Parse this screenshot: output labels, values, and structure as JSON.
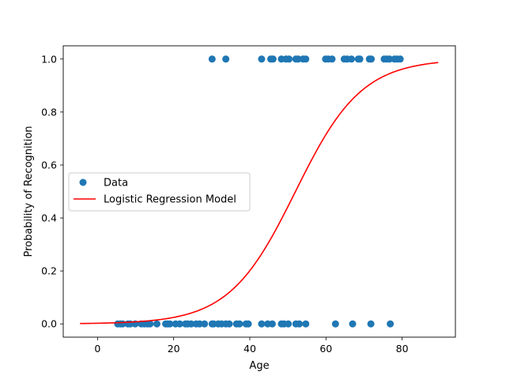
{
  "chart_data": {
    "type": "scatter",
    "title": "",
    "xlabel": "Age",
    "ylabel": "Probability of Recognition",
    "xlim": [
      -9,
      94
    ],
    "ylim": [
      -0.05,
      1.05
    ],
    "x_ticks": [
      0,
      20,
      40,
      60,
      80
    ],
    "y_ticks": [
      0.0,
      0.2,
      0.4,
      0.6,
      0.8,
      1.0
    ],
    "x_tick_labels": [
      "0",
      "20",
      "40",
      "60",
      "80"
    ],
    "y_tick_labels": [
      "0.0",
      "0.2",
      "0.4",
      "0.6",
      "0.8",
      "1.0"
    ],
    "grid": false,
    "legend_position": "center-left",
    "series": [
      {
        "name": "Data",
        "type": "scatter",
        "color": "#1f77b4",
        "points": [
          {
            "x": 5.3,
            "y": 0
          },
          {
            "x": 6.0,
            "y": 0
          },
          {
            "x": 6.6,
            "y": 0
          },
          {
            "x": 8.0,
            "y": 0
          },
          {
            "x": 8.6,
            "y": 0
          },
          {
            "x": 9.9,
            "y": 0
          },
          {
            "x": 11.5,
            "y": 0
          },
          {
            "x": 12.3,
            "y": 0
          },
          {
            "x": 13.1,
            "y": 0
          },
          {
            "x": 13.8,
            "y": 0
          },
          {
            "x": 15.6,
            "y": 0
          },
          {
            "x": 17.9,
            "y": 0
          },
          {
            "x": 18.4,
            "y": 0
          },
          {
            "x": 19.0,
            "y": 0
          },
          {
            "x": 20.5,
            "y": 0
          },
          {
            "x": 21.6,
            "y": 0
          },
          {
            "x": 23.1,
            "y": 0
          },
          {
            "x": 23.7,
            "y": 0
          },
          {
            "x": 24.6,
            "y": 0
          },
          {
            "x": 25.9,
            "y": 0
          },
          {
            "x": 26.8,
            "y": 0
          },
          {
            "x": 28.1,
            "y": 0
          },
          {
            "x": 30.1,
            "y": 0
          },
          {
            "x": 30.5,
            "y": 0
          },
          {
            "x": 31.7,
            "y": 0
          },
          {
            "x": 32.6,
            "y": 0
          },
          {
            "x": 33.7,
            "y": 0
          },
          {
            "x": 34.6,
            "y": 0
          },
          {
            "x": 36.5,
            "y": 0
          },
          {
            "x": 37.3,
            "y": 0
          },
          {
            "x": 39.0,
            "y": 0
          },
          {
            "x": 39.6,
            "y": 0
          },
          {
            "x": 43.1,
            "y": 0
          },
          {
            "x": 44.7,
            "y": 0
          },
          {
            "x": 45.9,
            "y": 0
          },
          {
            "x": 48.3,
            "y": 0
          },
          {
            "x": 49.0,
            "y": 0
          },
          {
            "x": 50.1,
            "y": 0
          },
          {
            "x": 52.1,
            "y": 0
          },
          {
            "x": 53.0,
            "y": 0
          },
          {
            "x": 54.7,
            "y": 0
          },
          {
            "x": 62.5,
            "y": 0
          },
          {
            "x": 67.0,
            "y": 0
          },
          {
            "x": 71.8,
            "y": 0
          },
          {
            "x": 76.9,
            "y": 0
          },
          {
            "x": 30.1,
            "y": 1
          },
          {
            "x": 33.7,
            "y": 1
          },
          {
            "x": 43.1,
            "y": 1
          },
          {
            "x": 45.5,
            "y": 1
          },
          {
            "x": 46.1,
            "y": 1
          },
          {
            "x": 48.3,
            "y": 1
          },
          {
            "x": 49.5,
            "y": 1
          },
          {
            "x": 50.3,
            "y": 1
          },
          {
            "x": 52.1,
            "y": 1
          },
          {
            "x": 52.7,
            "y": 1
          },
          {
            "x": 54.0,
            "y": 1
          },
          {
            "x": 54.7,
            "y": 1
          },
          {
            "x": 59.9,
            "y": 1
          },
          {
            "x": 60.6,
            "y": 1
          },
          {
            "x": 61.6,
            "y": 1
          },
          {
            "x": 64.8,
            "y": 1
          },
          {
            "x": 65.6,
            "y": 1
          },
          {
            "x": 66.7,
            "y": 1
          },
          {
            "x": 68.5,
            "y": 1
          },
          {
            "x": 68.9,
            "y": 1
          },
          {
            "x": 71.4,
            "y": 1
          },
          {
            "x": 71.9,
            "y": 1
          },
          {
            "x": 75.3,
            "y": 1
          },
          {
            "x": 76.0,
            "y": 1
          },
          {
            "x": 76.7,
            "y": 1
          },
          {
            "x": 78.0,
            "y": 1
          },
          {
            "x": 78.7,
            "y": 1
          },
          {
            "x": 79.5,
            "y": 1
          }
        ]
      },
      {
        "name": "Logistic Regression Model",
        "type": "line",
        "color": "#ff0000",
        "x_range": [
          -4.6,
          89.5
        ],
        "logistic": {
          "midpoint": 52.0,
          "rate": 0.115
        }
      }
    ]
  }
}
